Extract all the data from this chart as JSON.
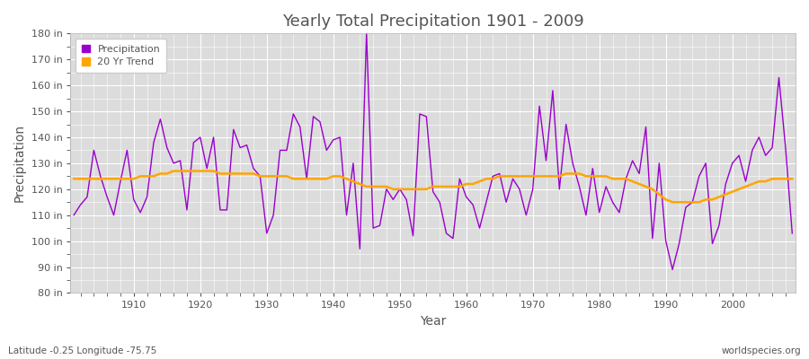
{
  "title": "Yearly Total Precipitation 1901 - 2009",
  "xlabel": "Year",
  "ylabel": "Precipitation",
  "bottom_left_label": "Latitude -0.25 Longitude -75.75",
  "bottom_right_label": "worldspecies.org",
  "legend_entries": [
    "Precipitation",
    "20 Yr Trend"
  ],
  "precip_color": "#9900cc",
  "trend_color": "#ffa500",
  "fig_bg_color": "#ffffff",
  "plot_bg_color": "#dcdcdc",
  "grid_color": "#ffffff",
  "text_color": "#555555",
  "ylim": [
    80,
    180
  ],
  "ytick_labels": [
    "80 in",
    "90 in",
    "100 in",
    "110 in",
    "120 in",
    "130 in",
    "140 in",
    "150 in",
    "160 in",
    "170 in",
    "180 in"
  ],
  "ytick_values": [
    80,
    90,
    100,
    110,
    120,
    130,
    140,
    150,
    160,
    170,
    180
  ],
  "years": [
    1901,
    1902,
    1903,
    1904,
    1905,
    1906,
    1907,
    1908,
    1909,
    1910,
    1911,
    1912,
    1913,
    1914,
    1915,
    1916,
    1917,
    1918,
    1919,
    1920,
    1921,
    1922,
    1923,
    1924,
    1925,
    1926,
    1927,
    1928,
    1929,
    1930,
    1931,
    1932,
    1933,
    1934,
    1935,
    1936,
    1937,
    1938,
    1939,
    1940,
    1941,
    1942,
    1943,
    1944,
    1945,
    1946,
    1947,
    1948,
    1949,
    1950,
    1951,
    1952,
    1953,
    1954,
    1955,
    1956,
    1957,
    1958,
    1959,
    1960,
    1961,
    1962,
    1963,
    1964,
    1965,
    1966,
    1967,
    1968,
    1969,
    1970,
    1971,
    1972,
    1973,
    1974,
    1975,
    1976,
    1977,
    1978,
    1979,
    1980,
    1981,
    1982,
    1983,
    1984,
    1985,
    1986,
    1987,
    1988,
    1989,
    1990,
    1991,
    1992,
    1993,
    1994,
    1995,
    1996,
    1997,
    1998,
    1999,
    2000,
    2001,
    2002,
    2003,
    2004,
    2005,
    2006,
    2007,
    2008,
    2009
  ],
  "precip": [
    110,
    114,
    117,
    135,
    125,
    117,
    110,
    123,
    135,
    116,
    111,
    117,
    138,
    147,
    136,
    130,
    131,
    112,
    138,
    140,
    128,
    140,
    112,
    112,
    143,
    136,
    137,
    128,
    125,
    103,
    110,
    135,
    135,
    149,
    144,
    124,
    148,
    146,
    135,
    139,
    140,
    110,
    130,
    97,
    180,
    105,
    106,
    120,
    116,
    120,
    116,
    102,
    149,
    148,
    119,
    115,
    103,
    101,
    124,
    117,
    114,
    105,
    115,
    125,
    126,
    115,
    124,
    120,
    110,
    120,
    152,
    131,
    158,
    120,
    145,
    130,
    121,
    110,
    128,
    111,
    121,
    115,
    111,
    124,
    131,
    126,
    144,
    101,
    130,
    100,
    89,
    99,
    113,
    115,
    125,
    130,
    99,
    106,
    122,
    130,
    133,
    123,
    135,
    140,
    133,
    136,
    163,
    136,
    103
  ],
  "trend": [
    124,
    124,
    124,
    124,
    124,
    124,
    124,
    124,
    124,
    124,
    125,
    125,
    125,
    126,
    126,
    127,
    127,
    127,
    127,
    127,
    127,
    127,
    126,
    126,
    126,
    126,
    126,
    126,
    125,
    125,
    125,
    125,
    125,
    124,
    124,
    124,
    124,
    124,
    124,
    125,
    125,
    124,
    123,
    122,
    121,
    121,
    121,
    121,
    120,
    120,
    120,
    120,
    120,
    120,
    121,
    121,
    121,
    121,
    121,
    122,
    122,
    123,
    124,
    124,
    125,
    125,
    125,
    125,
    125,
    125,
    125,
    125,
    125,
    125,
    126,
    126,
    126,
    125,
    125,
    125,
    125,
    124,
    124,
    124,
    123,
    122,
    121,
    120,
    118,
    116,
    115,
    115,
    115,
    115,
    115,
    116,
    116,
    117,
    118,
    119,
    120,
    121,
    122,
    123,
    123,
    124,
    124,
    124,
    124
  ]
}
